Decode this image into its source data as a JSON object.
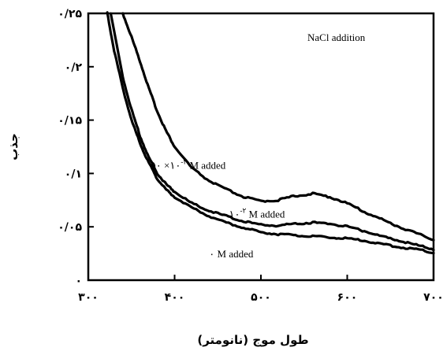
{
  "chart_data": {
    "type": "line",
    "xlabel": "طول موج (نانومتر)",
    "ylabel": "جذب",
    "xlim": [
      300,
      700
    ],
    "ylim": [
      0,
      0.25
    ],
    "x_ticks": [
      300,
      400,
      500,
      600,
      700
    ],
    "x_tick_labels": [
      "۳۰۰",
      "۴۰۰",
      "۵۰۰",
      "۶۰۰",
      "۷۰۰"
    ],
    "y_ticks": [
      0,
      0.05,
      0.1,
      0.15,
      0.2,
      0.25
    ],
    "y_tick_labels": [
      "۰",
      "۰/۰۵",
      "۰/۱",
      "۰/۱۵",
      "۰/۲",
      "۰/۲۵"
    ],
    "annotation_title": "NaCl addition",
    "series": [
      {
        "name": "۵۰ ×۱۰-۲ M added",
        "x": [
          340,
          350,
          360,
          370,
          380,
          390,
          400,
          420,
          440,
          460,
          480,
          500,
          520,
          540,
          560,
          580,
          600,
          620,
          640,
          660,
          680,
          700
        ],
        "y": [
          0.25,
          0.228,
          0.205,
          0.18,
          0.158,
          0.14,
          0.125,
          0.105,
          0.093,
          0.085,
          0.078,
          0.074,
          0.075,
          0.079,
          0.081,
          0.078,
          0.072,
          0.064,
          0.057,
          0.05,
          0.044,
          0.038
        ]
      },
      {
        "name": "۱۰-۲ M added",
        "x": [
          326,
          340,
          350,
          360,
          370,
          380,
          390,
          400,
          420,
          440,
          460,
          480,
          500,
          520,
          540,
          560,
          580,
          600,
          620,
          640,
          660,
          680,
          700
        ],
        "y": [
          0.25,
          0.19,
          0.16,
          0.135,
          0.115,
          0.1,
          0.09,
          0.083,
          0.072,
          0.065,
          0.06,
          0.055,
          0.052,
          0.051,
          0.053,
          0.054,
          0.053,
          0.05,
          0.046,
          0.041,
          0.037,
          0.033,
          0.029
        ]
      },
      {
        "name": "۰ M added",
        "x": [
          322,
          330,
          340,
          350,
          360,
          370,
          380,
          390,
          400,
          420,
          440,
          460,
          480,
          500,
          520,
          540,
          560,
          580,
          600,
          620,
          640,
          660,
          680,
          700
        ],
        "y": [
          0.25,
          0.215,
          0.18,
          0.15,
          0.128,
          0.11,
          0.095,
          0.085,
          0.078,
          0.068,
          0.06,
          0.054,
          0.049,
          0.045,
          0.043,
          0.042,
          0.041,
          0.04,
          0.039,
          0.037,
          0.034,
          0.031,
          0.029,
          0.026
        ]
      }
    ],
    "series_labels": [
      {
        "text": "۵۰ ×۱۰",
        "sup": "-۲",
        "suffix": " M added",
        "x": 372,
        "y": 0.1045
      },
      {
        "text": "۱۰",
        "sup": "-۲",
        "suffix": " M added",
        "x": 463,
        "y": 0.0585
      },
      {
        "text": "۰",
        "sup": "",
        "suffix": " M added",
        "x": 440,
        "y": 0.0215
      }
    ]
  }
}
